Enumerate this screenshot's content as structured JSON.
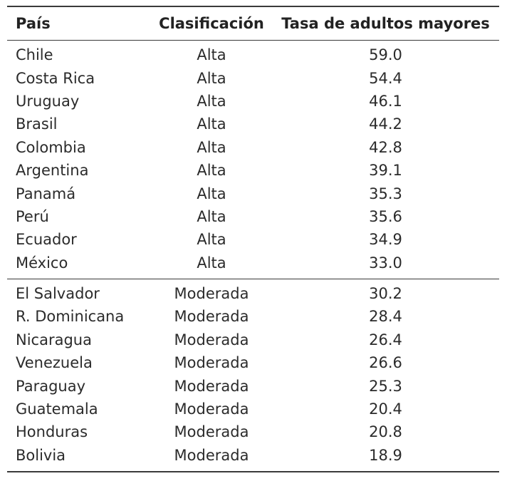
{
  "table": {
    "headers": {
      "country": "País",
      "classification": "Clasificación",
      "rate": "Tasa de adultos mayores"
    },
    "groups": [
      {
        "rows": [
          {
            "country": "Chile",
            "classification": "Alta",
            "rate": "59.0"
          },
          {
            "country": "Costa Rica",
            "classification": "Alta",
            "rate": "54.4"
          },
          {
            "country": "Uruguay",
            "classification": "Alta",
            "rate": "46.1"
          },
          {
            "country": "Brasil",
            "classification": "Alta",
            "rate": "44.2"
          },
          {
            "country": "Colombia",
            "classification": "Alta",
            "rate": "42.8"
          },
          {
            "country": "Argentina",
            "classification": "Alta",
            "rate": "39.1"
          },
          {
            "country": "Panamá",
            "classification": "Alta",
            "rate": "35.3"
          },
          {
            "country": "Perú",
            "classification": "Alta",
            "rate": "35.6"
          },
          {
            "country": "Ecuador",
            "classification": "Alta",
            "rate": "34.9"
          },
          {
            "country": "México",
            "classification": "Alta",
            "rate": "33.0"
          }
        ]
      },
      {
        "rows": [
          {
            "country": "El Salvador",
            "classification": "Moderada",
            "rate": "30.2"
          },
          {
            "country": "R. Dominicana",
            "classification": "Moderada",
            "rate": "28.4"
          },
          {
            "country": "Nicaragua",
            "classification": "Moderada",
            "rate": "26.4"
          },
          {
            "country": "Venezuela",
            "classification": "Moderada",
            "rate": "26.6"
          },
          {
            "country": "Paraguay",
            "classification": "Moderada",
            "rate": "25.3"
          },
          {
            "country": "Guatemala",
            "classification": "Moderada",
            "rate": "20.4"
          },
          {
            "country": "Honduras",
            "classification": "Moderada",
            "rate": "20.8"
          },
          {
            "country": "Bolivia",
            "classification": "Moderada",
            "rate": "18.9"
          }
        ]
      }
    ]
  }
}
